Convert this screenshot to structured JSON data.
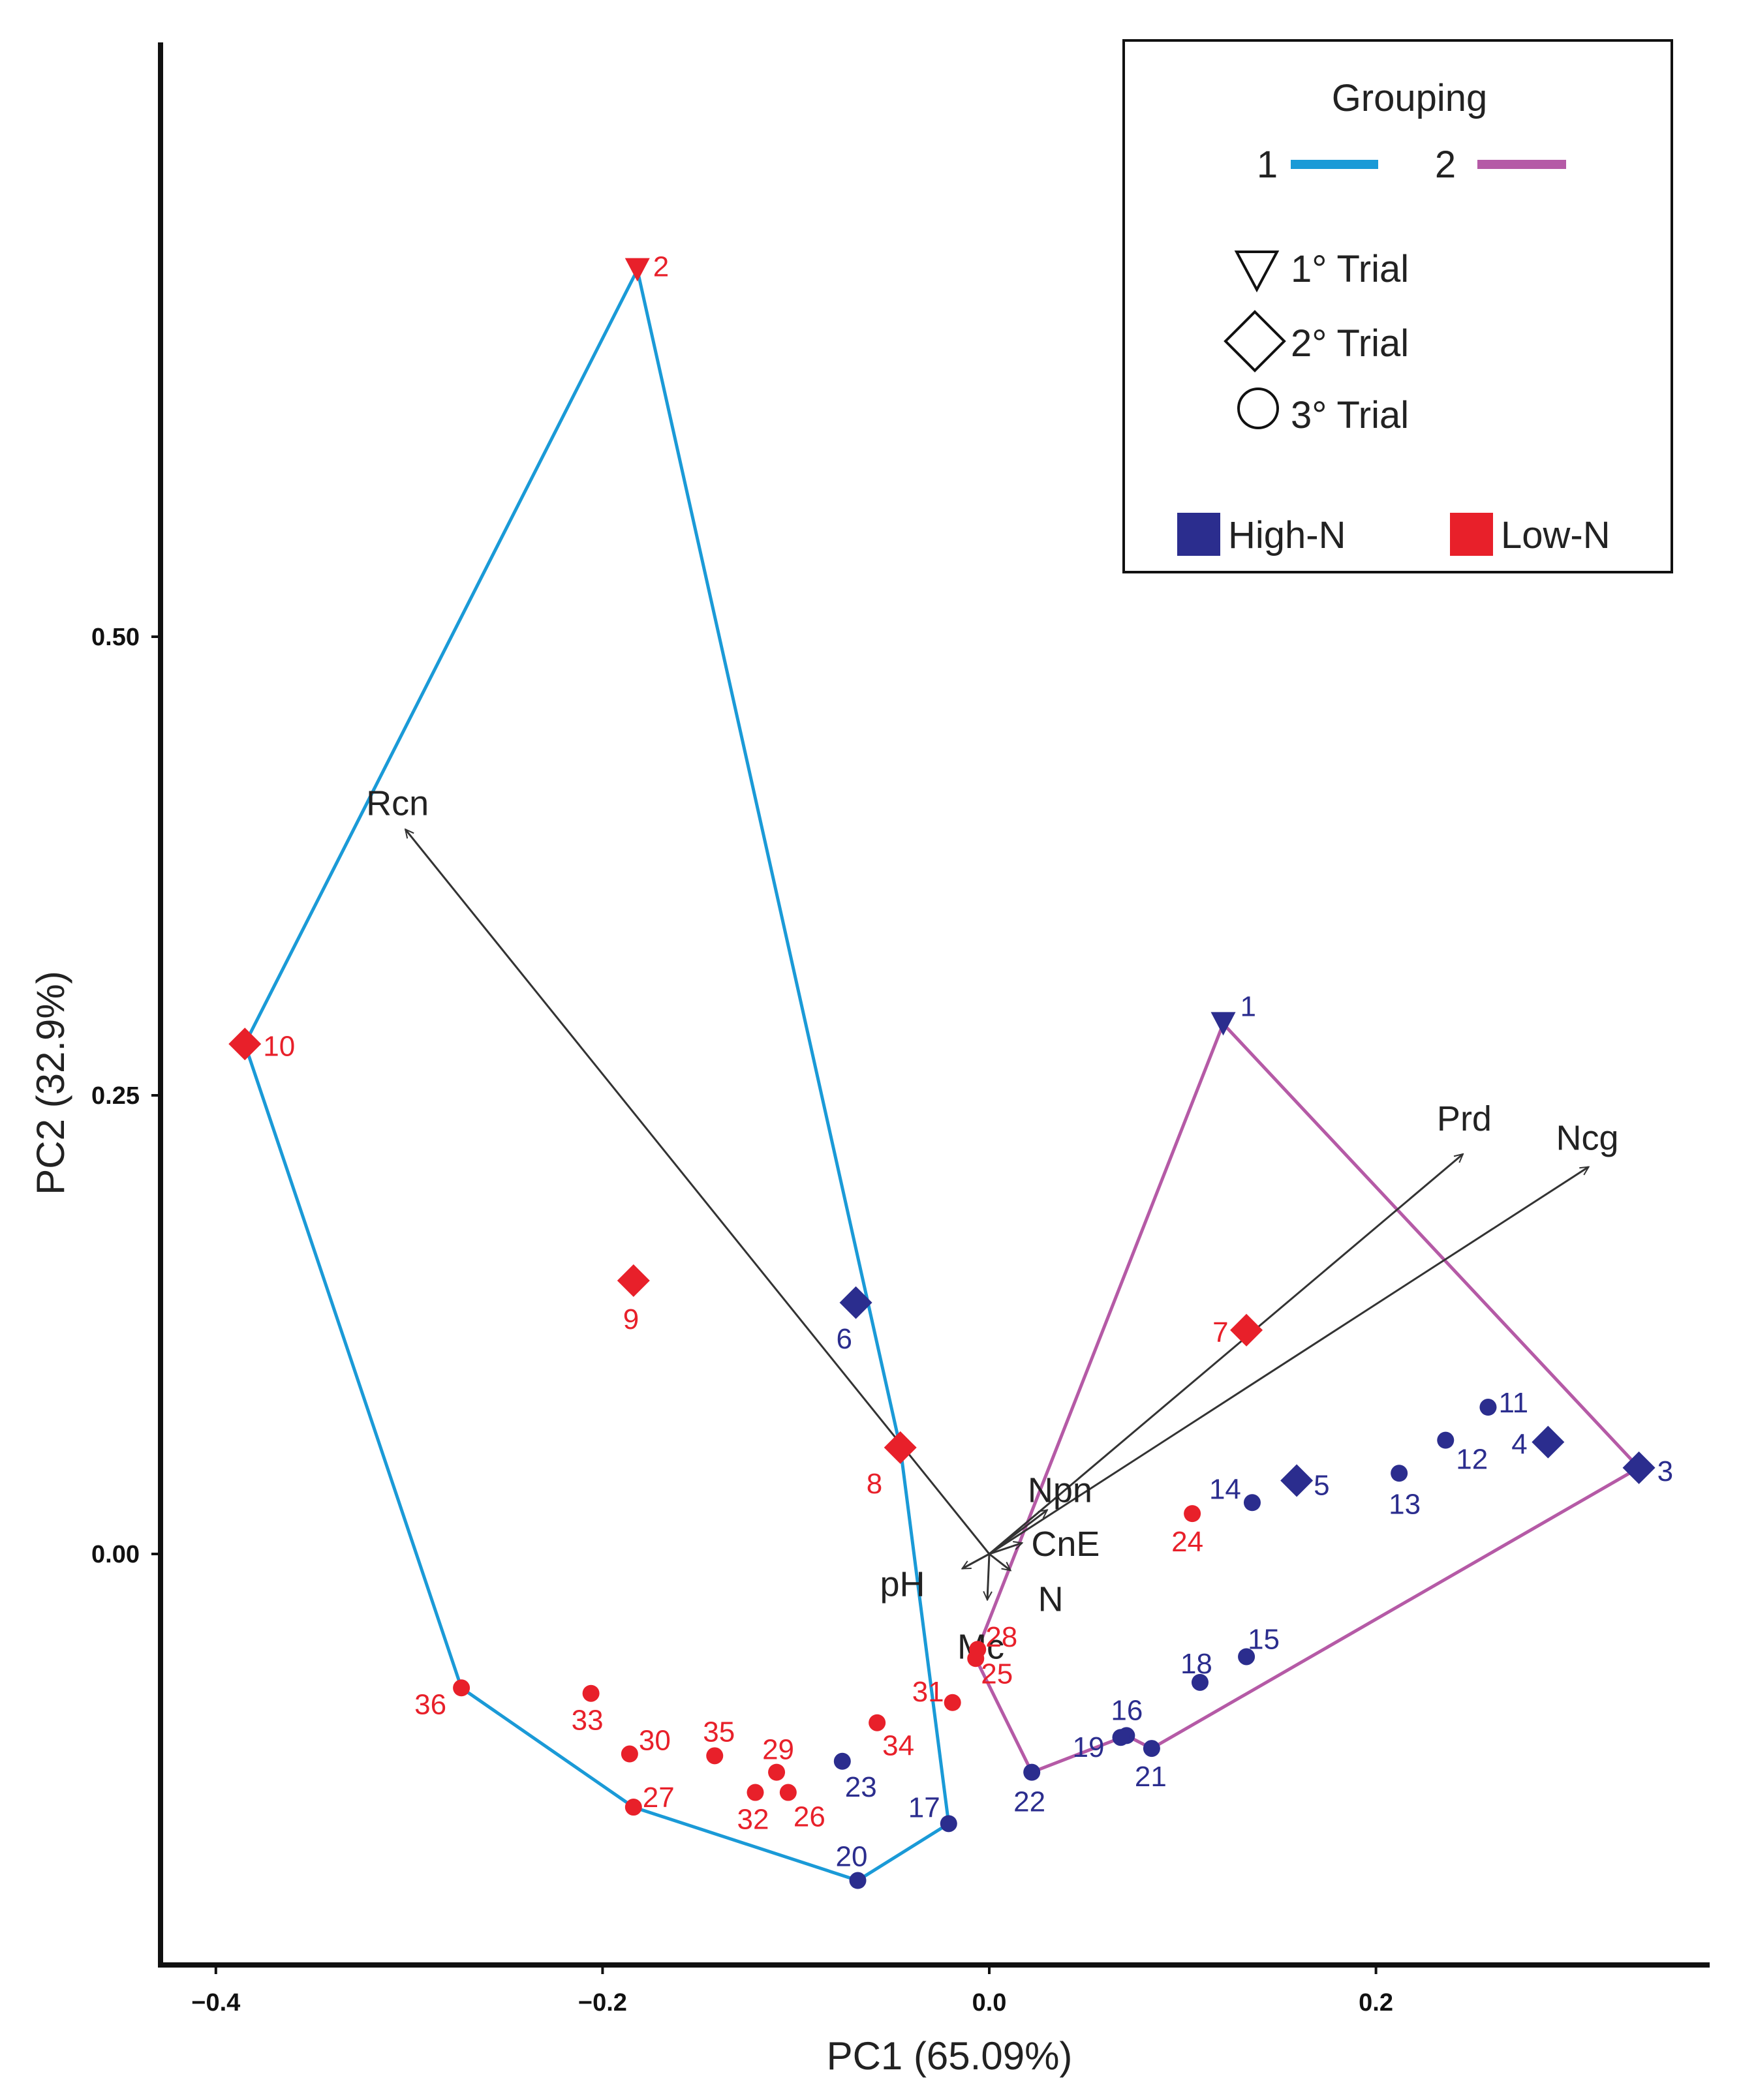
{
  "chart_data": {
    "type": "scatter",
    "xlabel": "PC1 (65.09%)",
    "ylabel": "PC2 (32.9%)",
    "xlim": [
      -0.42,
      0.37
    ],
    "ylim": [
      -0.19,
      0.83
    ],
    "x_ticks": [
      {
        "value": -0.4,
        "label": "−0.4"
      },
      {
        "value": -0.2,
        "label": "−0.2"
      },
      {
        "value": 0.0,
        "label": "0.0"
      },
      {
        "value": 0.2,
        "label": "0.2"
      }
    ],
    "y_ticks": [
      {
        "value": 0.5,
        "label": "0.50"
      },
      {
        "value": 0.25,
        "label": "0.25"
      },
      {
        "value": 0.0,
        "label": "0.00"
      }
    ],
    "colors": {
      "high_n": "#2b2d8e",
      "low_n": "#e8202a",
      "group1": "#1a9ad7",
      "group2": "#b55aa6",
      "vector": "#333333"
    },
    "legend": {
      "title": "Grouping",
      "groups": [
        {
          "label": "1",
          "color": "#1a9ad7"
        },
        {
          "label": "2",
          "color": "#b55aa6"
        }
      ],
      "trials": [
        {
          "shape": "triangle",
          "label": "1° Trial"
        },
        {
          "shape": "diamond",
          "label": "2° Trial"
        },
        {
          "shape": "circle",
          "label": "3° Trial"
        }
      ],
      "nitrogen": [
        {
          "label": "High-N",
          "color": "#2b2d8e"
        },
        {
          "label": "Low-N",
          "color": "#e8202a"
        }
      ],
      "placement": "top-right"
    },
    "points": [
      {
        "id": "1",
        "x": 0.121,
        "y": 0.289,
        "shape": "triangle",
        "n": "high"
      },
      {
        "id": "2",
        "x": -0.182,
        "y": 0.7,
        "shape": "triangle",
        "n": "low"
      },
      {
        "id": "3",
        "x": 0.336,
        "y": 0.047,
        "shape": "diamond",
        "n": "high"
      },
      {
        "id": "4",
        "x": 0.289,
        "y": 0.061,
        "shape": "diamond",
        "n": "high"
      },
      {
        "id": "5",
        "x": 0.159,
        "y": 0.04,
        "shape": "diamond",
        "n": "high"
      },
      {
        "id": "6",
        "x": -0.069,
        "y": 0.137,
        "shape": "diamond",
        "n": "high"
      },
      {
        "id": "7",
        "x": 0.133,
        "y": 0.122,
        "shape": "diamond",
        "n": "low"
      },
      {
        "id": "8",
        "x": -0.046,
        "y": 0.058,
        "shape": "diamond",
        "n": "low"
      },
      {
        "id": "9",
        "x": -0.184,
        "y": 0.149,
        "shape": "diamond",
        "n": "low"
      },
      {
        "id": "10",
        "x": -0.385,
        "y": 0.278,
        "shape": "diamond",
        "n": "low"
      },
      {
        "id": "11",
        "x": 0.258,
        "y": 0.08,
        "shape": "circle",
        "n": "high"
      },
      {
        "id": "12",
        "x": 0.236,
        "y": 0.062,
        "shape": "circle",
        "n": "high"
      },
      {
        "id": "13",
        "x": 0.212,
        "y": 0.044,
        "shape": "circle",
        "n": "high"
      },
      {
        "id": "14",
        "x": 0.136,
        "y": 0.028,
        "shape": "circle",
        "n": "high"
      },
      {
        "id": "15",
        "x": 0.133,
        "y": -0.056,
        "shape": "circle",
        "n": "high"
      },
      {
        "id": "16",
        "x": 0.071,
        "y": -0.099,
        "shape": "circle",
        "n": "high"
      },
      {
        "id": "17",
        "x": -0.021,
        "y": -0.147,
        "shape": "circle",
        "n": "high"
      },
      {
        "id": "18",
        "x": 0.109,
        "y": -0.07,
        "shape": "circle",
        "n": "high"
      },
      {
        "id": "19",
        "x": 0.068,
        "y": -0.1,
        "shape": "circle",
        "n": "high"
      },
      {
        "id": "20",
        "x": -0.068,
        "y": -0.178,
        "shape": "circle",
        "n": "high"
      },
      {
        "id": "21",
        "x": 0.084,
        "y": -0.106,
        "shape": "circle",
        "n": "high"
      },
      {
        "id": "22",
        "x": 0.022,
        "y": -0.119,
        "shape": "circle",
        "n": "high"
      },
      {
        "id": "23",
        "x": -0.076,
        "y": -0.113,
        "shape": "circle",
        "n": "high"
      },
      {
        "id": "24",
        "x": 0.105,
        "y": 0.022,
        "shape": "circle",
        "n": "low"
      },
      {
        "id": "25",
        "x": -0.007,
        "y": -0.057,
        "shape": "circle",
        "n": "low"
      },
      {
        "id": "26",
        "x": -0.104,
        "y": -0.13,
        "shape": "circle",
        "n": "low"
      },
      {
        "id": "27",
        "x": -0.184,
        "y": -0.138,
        "shape": "circle",
        "n": "low"
      },
      {
        "id": "28",
        "x": -0.006,
        "y": -0.052,
        "shape": "circle",
        "n": "low"
      },
      {
        "id": "29",
        "x": -0.11,
        "y": -0.119,
        "shape": "circle",
        "n": "low"
      },
      {
        "id": "30",
        "x": -0.186,
        "y": -0.109,
        "shape": "circle",
        "n": "low"
      },
      {
        "id": "31",
        "x": -0.019,
        "y": -0.081,
        "shape": "circle",
        "n": "low"
      },
      {
        "id": "32",
        "x": -0.121,
        "y": -0.13,
        "shape": "circle",
        "n": "low"
      },
      {
        "id": "33",
        "x": -0.206,
        "y": -0.076,
        "shape": "circle",
        "n": "low"
      },
      {
        "id": "34",
        "x": -0.058,
        "y": -0.092,
        "shape": "circle",
        "n": "low"
      },
      {
        "id": "35",
        "x": -0.142,
        "y": -0.11,
        "shape": "circle",
        "n": "low"
      },
      {
        "id": "36",
        "x": -0.273,
        "y": -0.073,
        "shape": "circle",
        "n": "low"
      }
    ],
    "hulls": [
      {
        "group": "1",
        "ids": [
          "2",
          "8",
          "17",
          "20",
          "27",
          "36",
          "10"
        ]
      },
      {
        "group": "2",
        "ids": [
          "1",
          "3",
          "21",
          "16",
          "22",
          "25",
          "28"
        ]
      }
    ],
    "vectors": [
      {
        "name": "Rcn",
        "x": -0.302,
        "y": 0.395
      },
      {
        "name": "Prd",
        "x": 0.245,
        "y": 0.218
      },
      {
        "name": "Ncg",
        "x": 0.31,
        "y": 0.211
      },
      {
        "name": "Npn",
        "x": 0.03,
        "y": 0.024
      },
      {
        "name": "CnE",
        "x": 0.017,
        "y": 0.006
      },
      {
        "name": "pH",
        "x": -0.014,
        "y": -0.008
      },
      {
        "name": "N",
        "x": 0.011,
        "y": -0.009
      },
      {
        "name": "Mc",
        "x": -0.001,
        "y": -0.025
      }
    ]
  }
}
